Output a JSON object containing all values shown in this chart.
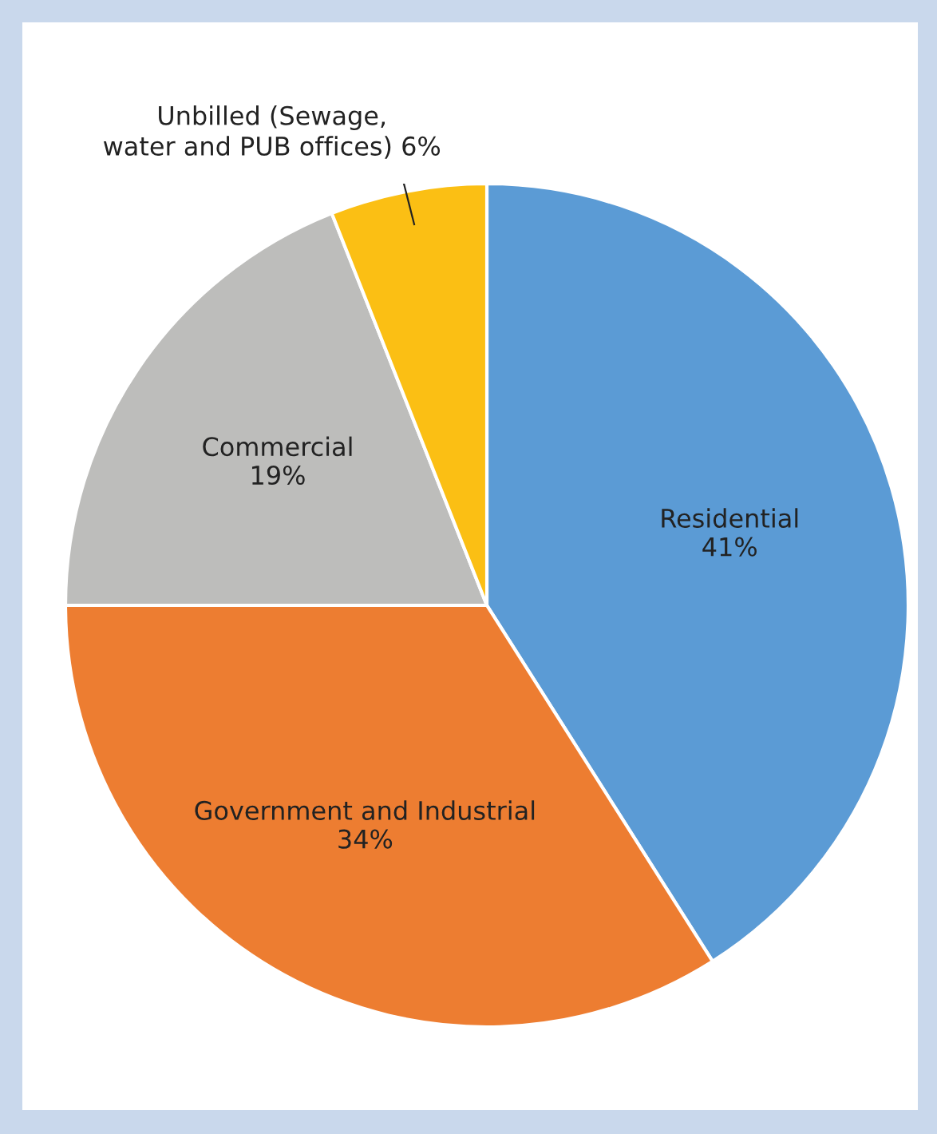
{
  "chart_data": {
    "type": "pie",
    "categories": [
      "Residential",
      "Government and Industrial",
      "Commercial",
      "Unbilled (Sewage,\nwater and PUB offices)"
    ],
    "values": [
      41,
      34,
      19,
      6
    ],
    "value_labels": [
      "41%",
      "34%",
      "19%",
      "6%"
    ],
    "colors": [
      "#5b9bd5",
      "#ed7d31",
      "#bdbdbb",
      "#fbbf14"
    ],
    "legend": false
  }
}
